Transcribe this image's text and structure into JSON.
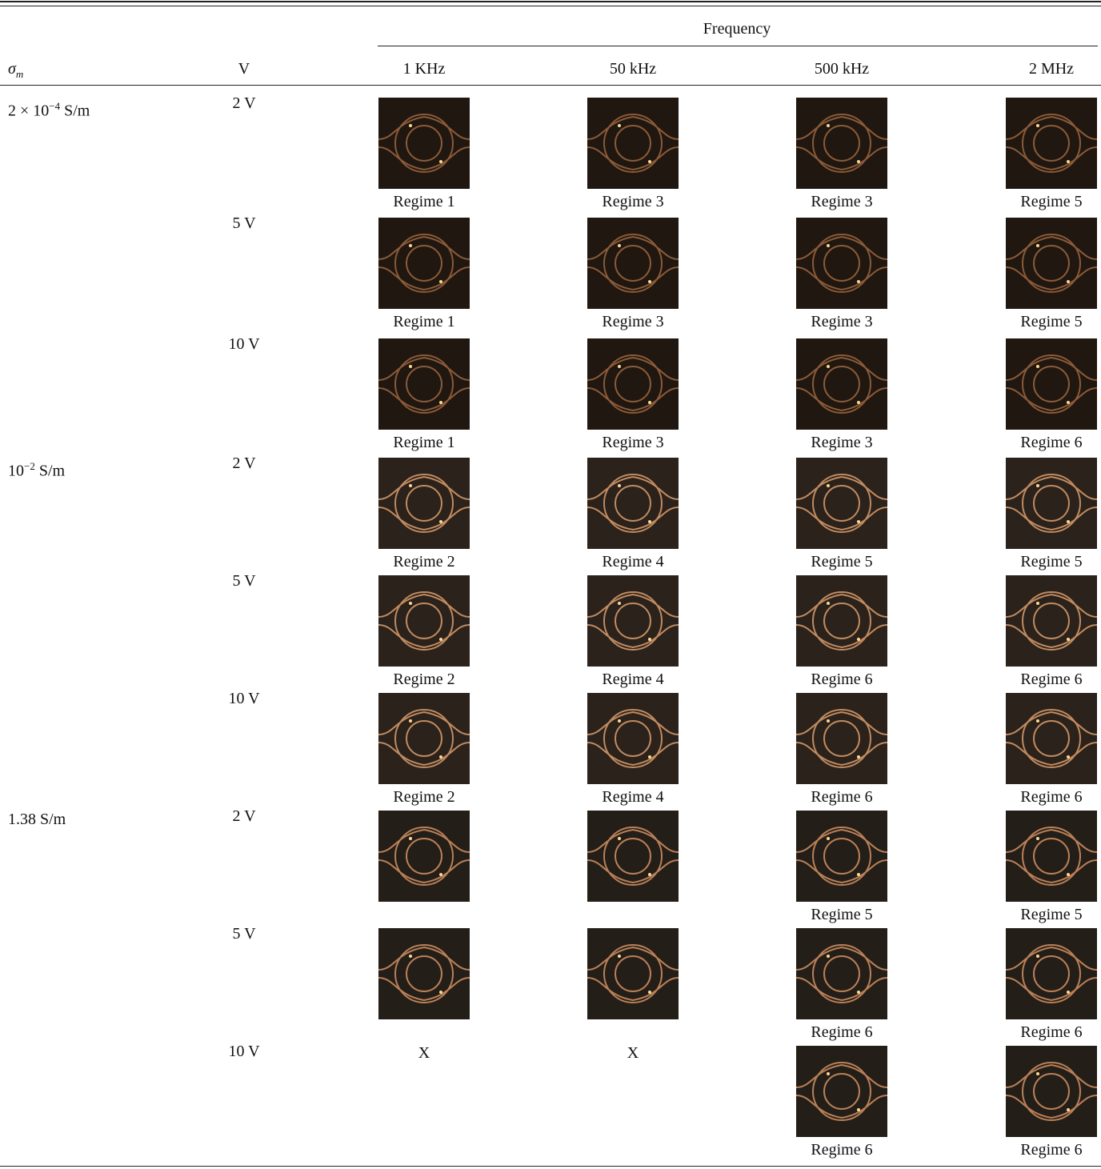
{
  "table": {
    "group_header": "Frequency",
    "columns": [
      {
        "symbol": "σ",
        "subscript": "m"
      },
      "V",
      "1 KHz",
      "50 kHz",
      "500 kHz",
      "2 MHz"
    ],
    "rows": [
      {
        "sigma": {
          "mantissa": "2 × 10",
          "exponent": "−4",
          "unit": "S/m"
        },
        "voltage": "2 V",
        "cells": [
          "Regime 1",
          "Regime 3",
          "Regime 3",
          "Regime 5"
        ]
      },
      {
        "voltage": "5 V",
        "cells": [
          "Regime 1",
          "Regime 3",
          "Regime 3",
          "Regime 5"
        ]
      },
      {
        "voltage": "10 V",
        "cells": [
          "Regime 1",
          "Regime 3",
          "Regime 3",
          "Regime 6"
        ]
      },
      {
        "sigma": {
          "mantissa": "10",
          "exponent": "−2",
          "unit": "S/m"
        },
        "voltage": "2 V",
        "cells": [
          "Regime 2",
          "Regime 4",
          "Regime 5",
          "Regime 5"
        ]
      },
      {
        "voltage": "5 V",
        "cells": [
          "Regime 2",
          "Regime 4",
          "Regime 6",
          "Regime 6"
        ]
      },
      {
        "voltage": "10 V",
        "cells": [
          "Regime 2",
          "Regime 4",
          "Regime 6",
          "Regime 6"
        ]
      },
      {
        "sigma": {
          "text": "1.38 S/m"
        },
        "voltage": "2 V",
        "cells": [
          null,
          null,
          "Regime 5",
          "Regime 5"
        ]
      },
      {
        "voltage": "5 V",
        "cells": [
          null,
          null,
          "Regime 6",
          "Regime 6"
        ]
      },
      {
        "voltage": "10 V",
        "cells": [
          "X",
          "X",
          "Regime 6",
          "Regime 6"
        ]
      }
    ]
  }
}
